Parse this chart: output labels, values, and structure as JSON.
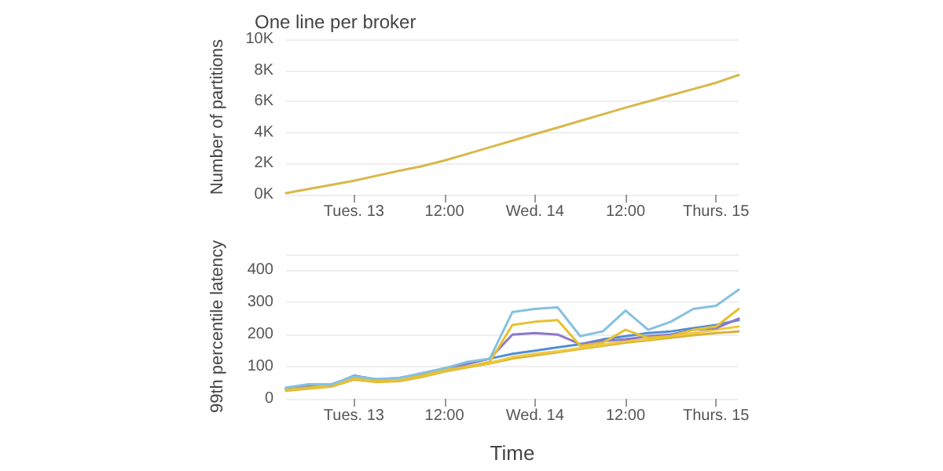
{
  "chart_data": [
    {
      "type": "line",
      "title": "One line per broker",
      "ylabel": "Number of partitions",
      "categories": [
        null,
        null,
        null,
        "Tues. 13",
        null,
        null,
        null,
        "12:00",
        null,
        null,
        null,
        "Wed. 14",
        null,
        null,
        null,
        "12:00",
        null,
        null,
        null,
        "Thurs. 15",
        null
      ],
      "series": [
        {
          "color": "#d9b84a",
          "values": [
            100,
            370,
            630,
            900,
            1220,
            1540,
            1830,
            2200,
            2620,
            3050,
            3470,
            3900,
            4320,
            4750,
            5170,
            5600,
            6000,
            6400,
            6800,
            7200,
            7700
          ]
        }
      ],
      "ylim": [
        0,
        10000
      ],
      "yticks": [
        {
          "value": 0,
          "label": "0K"
        },
        {
          "value": 2000,
          "label": "2K"
        },
        {
          "value": 4000,
          "label": "4K"
        },
        {
          "value": 6000,
          "label": "6K"
        },
        {
          "value": 8000,
          "label": "8K"
        },
        {
          "value": 10000,
          "label": "10K"
        }
      ],
      "grid": "y",
      "marker": "none",
      "line_style": "solid"
    },
    {
      "type": "line",
      "xlabel": "Time",
      "ylabel": "99th percentile latency",
      "categories": [
        null,
        null,
        null,
        "Tues. 13",
        null,
        null,
        null,
        "12:00",
        null,
        null,
        null,
        "Wed. 14",
        null,
        null,
        null,
        "12:00",
        null,
        null,
        null,
        "Thurs. 15",
        null
      ],
      "series": [
        {
          "color": "#d9b23a",
          "values": [
            25,
            32,
            38,
            60,
            52,
            55,
            68,
            85,
            98,
            110,
            125,
            135,
            145,
            155,
            165,
            175,
            182,
            190,
            198,
            205,
            210
          ]
        },
        {
          "color": "#f0c93c",
          "values": [
            28,
            34,
            40,
            63,
            54,
            58,
            70,
            88,
            100,
            112,
            130,
            140,
            148,
            158,
            168,
            180,
            185,
            195,
            205,
            215,
            225
          ]
        },
        {
          "color": "#4f8fd6",
          "values": [
            32,
            40,
            42,
            72,
            60,
            65,
            78,
            95,
            110,
            125,
            140,
            150,
            160,
            170,
            185,
            195,
            205,
            210,
            220,
            230,
            245
          ]
        },
        {
          "color": "#8c79c9",
          "values": [
            30,
            38,
            45,
            68,
            58,
            62,
            75,
            92,
            108,
            125,
            200,
            205,
            200,
            170,
            180,
            185,
            195,
            200,
            215,
            220,
            250
          ]
        },
        {
          "color": "#e6c12f",
          "values": [
            28,
            35,
            42,
            65,
            55,
            60,
            72,
            90,
            100,
            115,
            230,
            240,
            245,
            165,
            175,
            215,
            190,
            195,
            215,
            225,
            280
          ]
        },
        {
          "color": "#86c1e0",
          "values": [
            35,
            45,
            45,
            70,
            62,
            65,
            80,
            95,
            115,
            125,
            270,
            280,
            285,
            195,
            210,
            275,
            215,
            240,
            280,
            290,
            340
          ]
        }
      ],
      "ylim": [
        0,
        450
      ],
      "yticks": [
        0,
        100,
        200,
        300,
        400,
        {
          "value": 450,
          "label": null
        }
      ],
      "grid": "y",
      "marker": "none",
      "line_style": "solid"
    }
  ]
}
